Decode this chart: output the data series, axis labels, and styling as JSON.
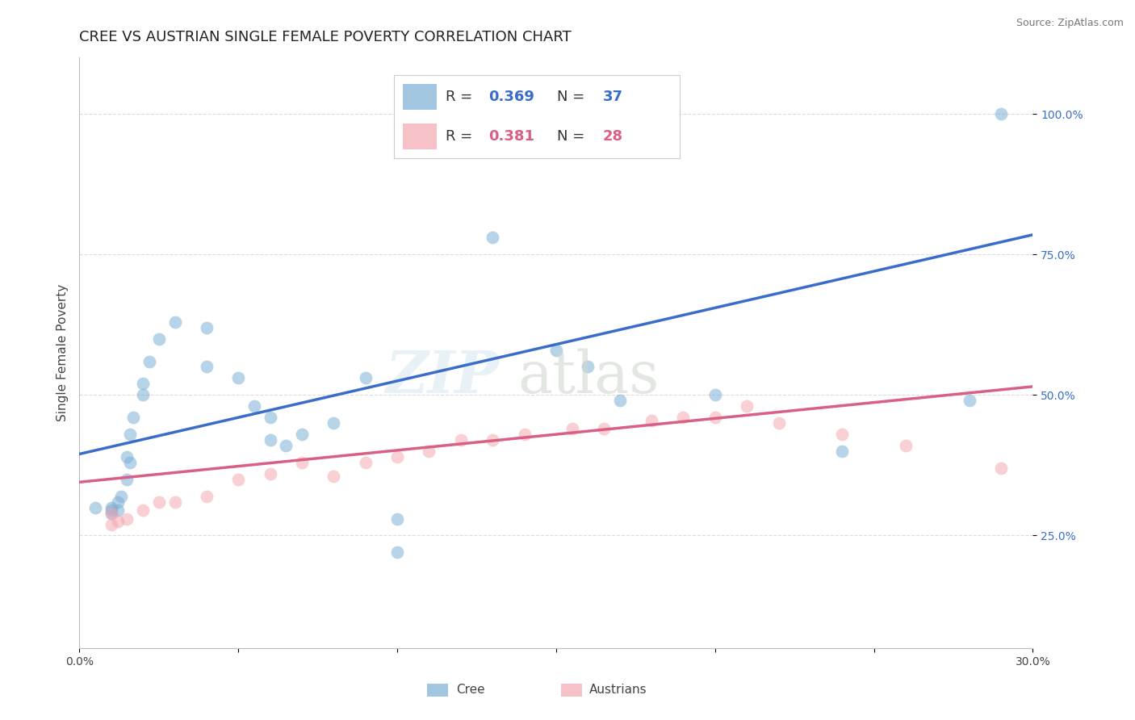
{
  "title": "CREE VS AUSTRIAN SINGLE FEMALE POVERTY CORRELATION CHART",
  "source": "Source: ZipAtlas.com",
  "ylabel": "Single Female Poverty",
  "xlim": [
    0.0,
    0.3
  ],
  "ylim": [
    0.05,
    1.1
  ],
  "xticks": [
    0.0,
    0.05,
    0.1,
    0.15,
    0.2,
    0.25,
    0.3
  ],
  "xticklabels": [
    "0.0%",
    "",
    "",
    "",
    "",
    "",
    "30.0%"
  ],
  "ytick_positions": [
    0.25,
    0.5,
    0.75,
    1.0
  ],
  "ytick_labels": [
    "25.0%",
    "50.0%",
    "75.0%",
    "100.0%"
  ],
  "grid_color": "#cccccc",
  "background_color": "#ffffff",
  "cree_color": "#7bafd4",
  "austrian_color": "#f4a8b0",
  "cree_line_color": "#3a6dc9",
  "austrian_line_color": "#d95f84",
  "cree_R": 0.369,
  "cree_N": 37,
  "austrian_R": 0.381,
  "austrian_N": 28,
  "cree_line_x0": 0.0,
  "cree_line_y0": 0.395,
  "cree_line_x1": 0.3,
  "cree_line_y1": 0.785,
  "austrian_line_x0": 0.0,
  "austrian_line_y0": 0.345,
  "austrian_line_x1": 0.3,
  "austrian_line_y1": 0.515,
  "cree_x": [
    0.005,
    0.01,
    0.01,
    0.01,
    0.012,
    0.012,
    0.013,
    0.015,
    0.015,
    0.016,
    0.016,
    0.017,
    0.02,
    0.02,
    0.022,
    0.025,
    0.03,
    0.04,
    0.04,
    0.05,
    0.055,
    0.06,
    0.06,
    0.065,
    0.07,
    0.08,
    0.09,
    0.1,
    0.1,
    0.13,
    0.15,
    0.16,
    0.17,
    0.2,
    0.24,
    0.28,
    0.29
  ],
  "cree_y": [
    0.3,
    0.3,
    0.295,
    0.29,
    0.31,
    0.295,
    0.32,
    0.35,
    0.39,
    0.38,
    0.43,
    0.46,
    0.5,
    0.52,
    0.56,
    0.6,
    0.63,
    0.62,
    0.55,
    0.53,
    0.48,
    0.46,
    0.42,
    0.41,
    0.43,
    0.45,
    0.53,
    0.22,
    0.28,
    0.78,
    0.58,
    0.55,
    0.49,
    0.5,
    0.4,
    0.49,
    1.0
  ],
  "austrian_x": [
    0.01,
    0.01,
    0.012,
    0.015,
    0.02,
    0.025,
    0.03,
    0.04,
    0.05,
    0.06,
    0.07,
    0.08,
    0.09,
    0.1,
    0.11,
    0.12,
    0.13,
    0.14,
    0.155,
    0.165,
    0.18,
    0.19,
    0.2,
    0.21,
    0.22,
    0.24,
    0.26,
    0.29
  ],
  "austrian_y": [
    0.29,
    0.27,
    0.275,
    0.28,
    0.295,
    0.31,
    0.31,
    0.32,
    0.35,
    0.36,
    0.38,
    0.355,
    0.38,
    0.39,
    0.4,
    0.42,
    0.42,
    0.43,
    0.44,
    0.44,
    0.455,
    0.46,
    0.46,
    0.48,
    0.45,
    0.43,
    0.41,
    0.37
  ],
  "title_fontsize": 13,
  "axis_label_fontsize": 11,
  "tick_fontsize": 10,
  "source_fontsize": 9,
  "legend_fontsize": 13
}
